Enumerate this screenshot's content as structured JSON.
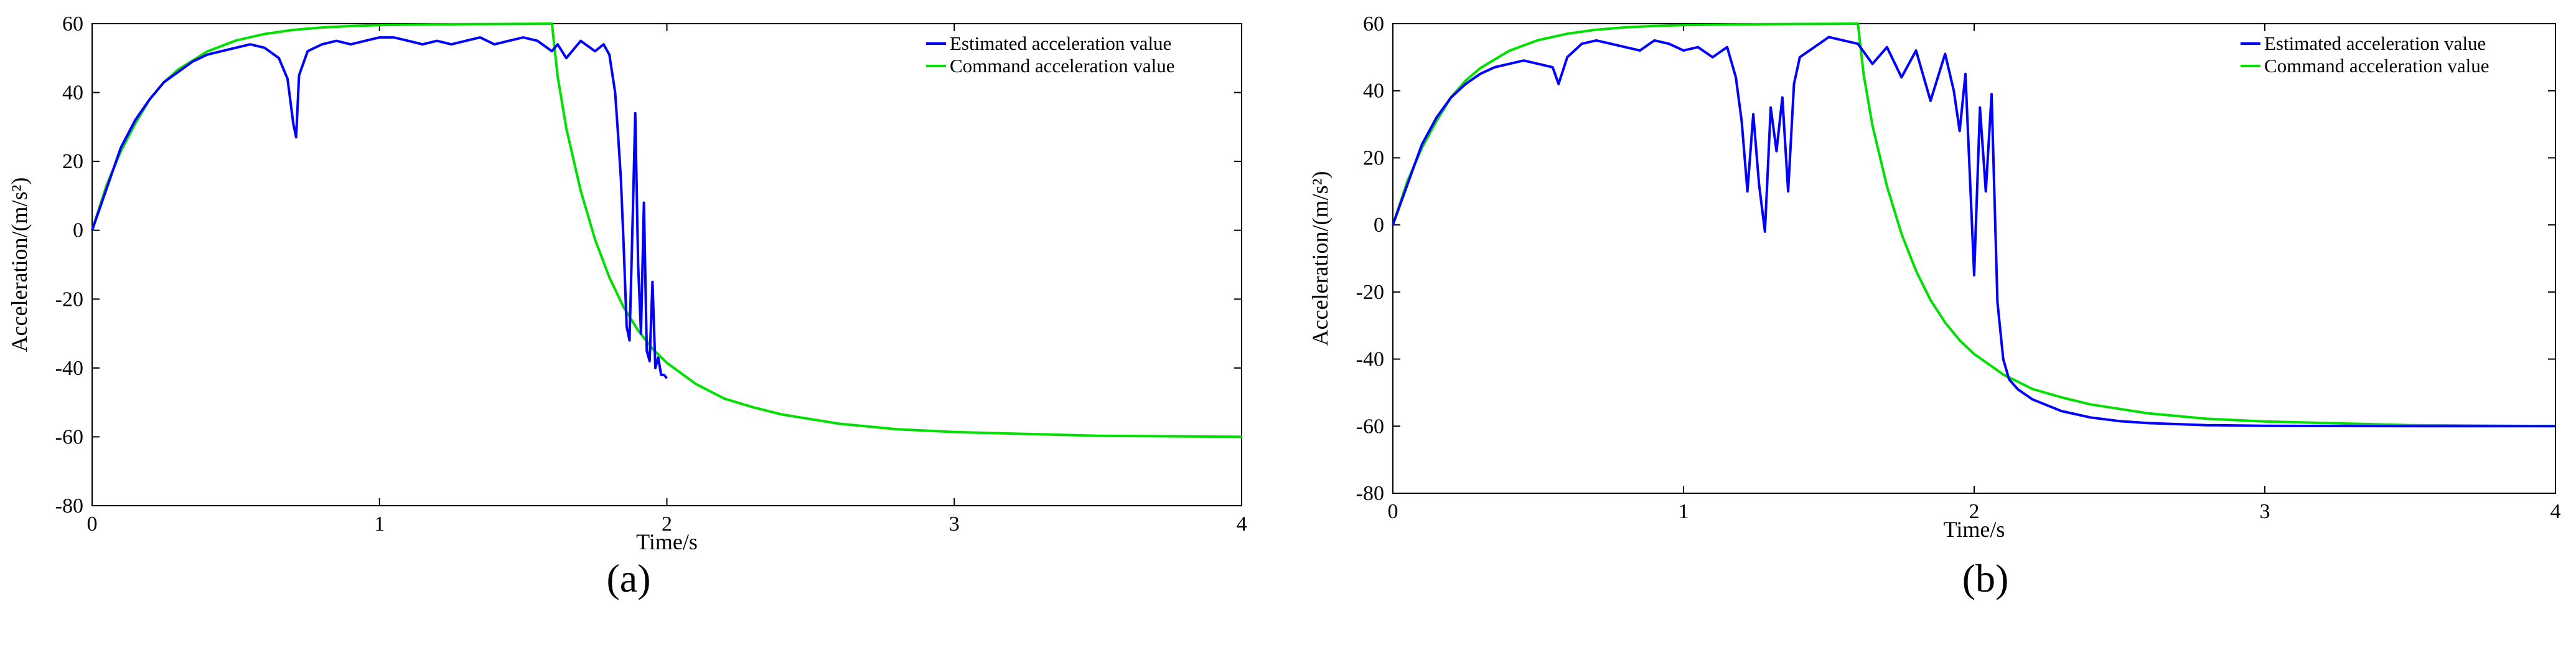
{
  "panels": [
    {
      "label": "(a)",
      "legend": [
        "Estimated acceleration value",
        "Command acceleration value"
      ],
      "chart_data": {
        "type": "line",
        "title": "",
        "xlabel": "Time/s",
        "ylabel": "Acceleration/(m/s²)",
        "xlim": [
          0,
          4
        ],
        "ylim": [
          -80,
          60
        ],
        "xticks": [
          0,
          1,
          2,
          3,
          4
        ],
        "yticks": [
          -80,
          -60,
          -40,
          -20,
          0,
          20,
          40,
          60
        ],
        "grid": false,
        "legend_position": "top-right",
        "series": [
          {
            "name": "Estimated acceleration value",
            "color": "#0000ff",
            "x": [
              0,
              0.05,
              0.1,
              0.15,
              0.2,
              0.25,
              0.3,
              0.35,
              0.4,
              0.45,
              0.5,
              0.55,
              0.6,
              0.65,
              0.68,
              0.7,
              0.71,
              0.72,
              0.75,
              0.8,
              0.85,
              0.9,
              0.95,
              1.0,
              1.05,
              1.1,
              1.15,
              1.2,
              1.25,
              1.3,
              1.35,
              1.4,
              1.45,
              1.5,
              1.55,
              1.6,
              1.62,
              1.65,
              1.7,
              1.75,
              1.78,
              1.8,
              1.82,
              1.83,
              1.84,
              1.85,
              1.86,
              1.87,
              1.88,
              1.89,
              1.9,
              1.91,
              1.92,
              1.93,
              1.94,
              1.95,
              1.96,
              1.97,
              1.98,
              1.99,
              2.0
            ],
            "y": [
              0,
              12,
              24,
              32,
              38,
              43,
              46,
              49,
              51,
              52,
              53,
              54,
              53,
              50,
              44,
              31,
              27,
              45,
              52,
              54,
              55,
              54,
              55,
              56,
              56,
              55,
              54,
              55,
              54,
              55,
              56,
              54,
              55,
              56,
              55,
              52,
              54,
              50,
              55,
              52,
              54,
              51,
              40,
              28,
              15,
              -5,
              -28,
              -32,
              0,
              34,
              -10,
              -30,
              8,
              -35,
              -38,
              -15,
              -40,
              -37,
              -42,
              -42,
              -43
            ]
          },
          {
            "name": "Command acceleration value",
            "color": "#00e000",
            "x": [
              0,
              0.05,
              0.1,
              0.15,
              0.2,
              0.25,
              0.3,
              0.4,
              0.5,
              0.6,
              0.7,
              0.8,
              0.9,
              1.0,
              1.2,
              1.4,
              1.6,
              1.62,
              1.65,
              1.7,
              1.75,
              1.8,
              1.85,
              1.9,
              1.95,
              2.0,
              2.1,
              2.2,
              2.3,
              2.4,
              2.6,
              2.8,
              3.0,
              3.5,
              4.0
            ],
            "y": [
              0,
              13,
              23,
              31,
              38,
              43,
              46.7,
              51.9,
              55.1,
              57.0,
              58.2,
              58.9,
              59.3,
              59.6,
              59.8,
              59.9,
              60,
              44.7,
              29.6,
              11.5,
              -2.7,
              -13.7,
              -22.4,
              -29.1,
              -34.4,
              -38.5,
              -44.6,
              -48.9,
              -51.4,
              -53.5,
              -56.2,
              -57.8,
              -58.6,
              -59.7,
              -60
            ]
          }
        ]
      }
    },
    {
      "label": "(b)",
      "legend": [
        "Estimated acceleration value",
        "Command acceleration value"
      ],
      "chart_data": {
        "type": "line",
        "title": "",
        "xlabel": "Time/s",
        "ylabel": "Acceleration/(m/s²)",
        "xlim": [
          0,
          4
        ],
        "ylim": [
          -80,
          60
        ],
        "xticks": [
          0,
          1,
          2,
          3,
          4
        ],
        "yticks": [
          -80,
          -60,
          -40,
          -20,
          0,
          20,
          40,
          60
        ],
        "grid": false,
        "legend_position": "top-right",
        "series": [
          {
            "name": "Estimated acceleration value",
            "color": "#0000ff",
            "x": [
              0,
              0.05,
              0.1,
              0.15,
              0.2,
              0.25,
              0.3,
              0.35,
              0.4,
              0.45,
              0.5,
              0.55,
              0.57,
              0.6,
              0.65,
              0.7,
              0.75,
              0.8,
              0.85,
              0.9,
              0.95,
              1.0,
              1.05,
              1.1,
              1.15,
              1.18,
              1.2,
              1.22,
              1.24,
              1.26,
              1.28,
              1.3,
              1.32,
              1.34,
              1.36,
              1.38,
              1.4,
              1.45,
              1.5,
              1.55,
              1.6,
              1.65,
              1.7,
              1.75,
              1.8,
              1.85,
              1.9,
              1.93,
              1.95,
              1.97,
              2.0,
              2.02,
              2.04,
              2.06,
              2.08,
              2.1,
              2.12,
              2.15,
              2.2,
              2.3,
              2.4,
              2.5,
              2.6,
              2.8,
              3.0,
              3.5,
              4.0
            ],
            "y": [
              0,
              12,
              24,
              32,
              38,
              42,
              45,
              47,
              48,
              49,
              48,
              47,
              42,
              50,
              54,
              55,
              54,
              53,
              52,
              55,
              54,
              52,
              53,
              50,
              53,
              44,
              31,
              10,
              33,
              12,
              -2,
              35,
              22,
              38,
              10,
              42,
              50,
              53,
              56,
              55,
              54,
              48,
              53,
              44,
              52,
              37,
              51,
              40,
              28,
              45,
              -15,
              35,
              10,
              39,
              -23,
              -40,
              -46,
              -49,
              -52,
              -55.5,
              -57.4,
              -58.5,
              -59.1,
              -59.7,
              -59.9,
              -60,
              -60
            ]
          },
          {
            "name": "Command acceleration value",
            "color": "#00e000",
            "x": [
              0,
              0.05,
              0.1,
              0.15,
              0.2,
              0.25,
              0.3,
              0.4,
              0.5,
              0.6,
              0.7,
              0.8,
              0.9,
              1.0,
              1.2,
              1.4,
              1.6,
              1.62,
              1.65,
              1.7,
              1.75,
              1.8,
              1.85,
              1.9,
              1.95,
              2.0,
              2.1,
              2.2,
              2.3,
              2.4,
              2.6,
              2.8,
              3.0,
              3.5,
              4.0
            ],
            "y": [
              0,
              13,
              23,
              31,
              38,
              43,
              46.7,
              51.9,
              55.1,
              57.0,
              58.2,
              58.9,
              59.3,
              59.6,
              59.8,
              59.9,
              60,
              44.7,
              29.6,
              11.5,
              -2.7,
              -13.7,
              -22.4,
              -29.1,
              -34.4,
              -38.5,
              -44.6,
              -48.9,
              -51.4,
              -53.5,
              -56.2,
              -57.8,
              -58.6,
              -59.7,
              -60
            ]
          }
        ]
      }
    }
  ]
}
